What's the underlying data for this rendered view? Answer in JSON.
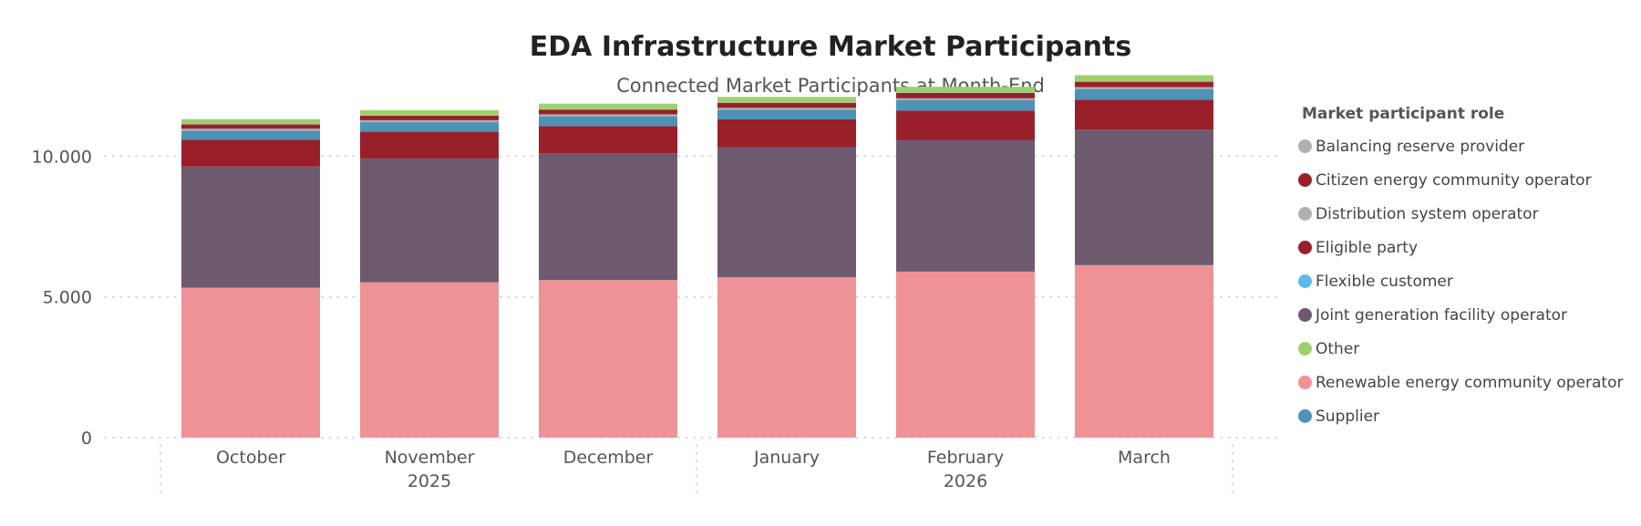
{
  "title": "EDA Infrastructure Market Participants",
  "subtitle": "Connected Market Participants at Month-End",
  "chart_data": {
    "type": "bar",
    "stacked": true,
    "title": "EDA Infrastructure Market Participants",
    "subtitle": "Connected Market Participants at Month-End",
    "categories": [
      "October",
      "November",
      "December",
      "January",
      "February",
      "March"
    ],
    "x_year_labels": [
      {
        "label": "2025",
        "category_index": 1
      },
      {
        "label": "2026",
        "category_index": 4
      }
    ],
    "y_ticks": [
      0,
      5000,
      10000
    ],
    "y_tick_labels": [
      "0",
      "5.000",
      "10.000"
    ],
    "ylim": [
      0,
      12800
    ],
    "grid": "horizontal dotted",
    "legend_title": "Market participant role",
    "legend_position": "right",
    "series": [
      {
        "name": "Renewable energy community operator",
        "color": "#EE9295",
        "values": [
          5330,
          5520,
          5600,
          5700,
          5900,
          6130
        ]
      },
      {
        "name": "Joint generation facility operator",
        "color": "#6E5A6F",
        "values": [
          4300,
          4400,
          4500,
          4620,
          4680,
          4820
        ]
      },
      {
        "name": "Eligible party",
        "color": "#99202A",
        "values": [
          950,
          950,
          970,
          990,
          1040,
          1060
        ]
      },
      {
        "name": "Supplier",
        "color": "#4E92B5",
        "values": [
          330,
          340,
          350,
          340,
          370,
          380
        ]
      },
      {
        "name": "Flexible customer",
        "color": "#5BBCE8",
        "values": [
          0,
          0,
          0,
          0,
          0,
          0
        ]
      },
      {
        "name": "Distribution system operator",
        "color": "#B0B0B0",
        "values": [
          70,
          70,
          70,
          70,
          70,
          70
        ]
      },
      {
        "name": "Citizen energy community operator",
        "color": "#99202A",
        "values": [
          150,
          160,
          170,
          180,
          190,
          190
        ]
      },
      {
        "name": "Balancing reserve provider",
        "color": "#B0B0B0",
        "values": [
          10,
          10,
          10,
          10,
          10,
          10
        ]
      },
      {
        "name": "Other",
        "color": "#9ECF6E",
        "values": [
          180,
          190,
          200,
          200,
          210,
          220
        ]
      }
    ],
    "legend_order": [
      "Balancing reserve provider",
      "Citizen energy community operator",
      "Distribution system operator",
      "Eligible party",
      "Flexible customer",
      "Joint generation facility operator",
      "Other",
      "Renewable energy community operator",
      "Supplier"
    ]
  }
}
